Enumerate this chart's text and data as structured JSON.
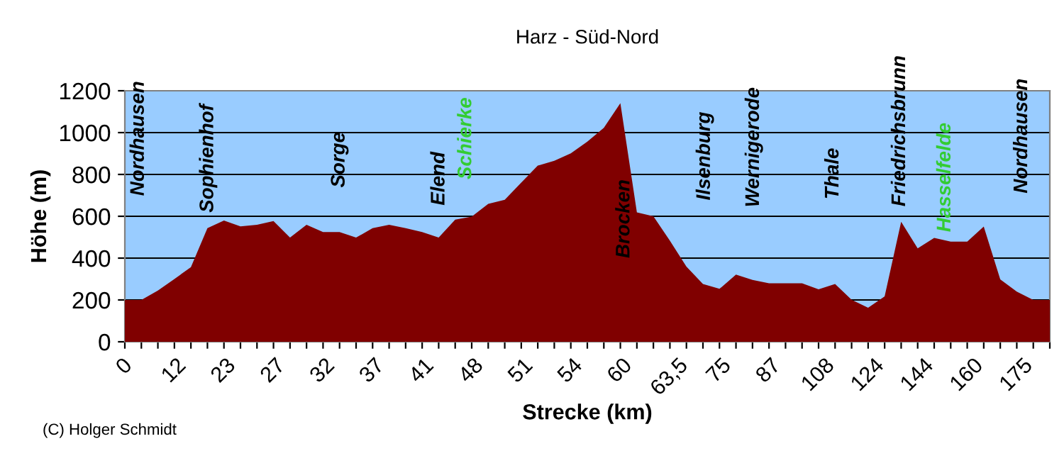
{
  "chart_data": {
    "type": "area",
    "title": "Harz - Süd-Nord",
    "xlabel": "Strecke (km)",
    "ylabel": "Höhe (m)",
    "categories": [
      "0",
      null,
      null,
      "12",
      null,
      null,
      "23",
      null,
      null,
      "27",
      null,
      null,
      "32",
      null,
      null,
      "37",
      null,
      null,
      "41",
      null,
      null,
      "48",
      null,
      null,
      "51",
      null,
      null,
      "54",
      null,
      null,
      "60",
      null,
      null,
      "63,5",
      null,
      null,
      "75",
      null,
      null,
      "87",
      null,
      null,
      "108",
      null,
      null,
      "124",
      null,
      null,
      "144",
      null,
      null,
      "160",
      null,
      null,
      "175",
      null,
      null
    ],
    "series": [
      {
        "color": "#800000",
        "values": [
          200,
          200,
          245,
          300,
          357,
          543,
          580,
          552,
          559,
          577,
          498,
          559,
          525,
          525,
          498,
          543,
          559,
          543,
          525,
          498,
          584,
          598,
          659,
          679,
          761,
          842,
          865,
          901,
          957,
          1023,
          1141,
          619,
          600,
          483,
          359,
          276,
          253,
          321,
          296,
          280,
          280,
          280,
          251,
          276,
          201,
          163,
          217,
          574,
          447,
          497,
          479,
          479,
          551,
          298,
          240,
          200,
          200
        ]
      }
    ],
    "ylim": [
      0,
      1200
    ],
    "yticks": [
      0,
      200,
      400,
      600,
      800,
      1000,
      1200
    ],
    "grid": "y",
    "legend": false,
    "annotations": [
      "Nordhausen",
      "Sophienhof",
      "Sorge",
      "Elend",
      "Schierke",
      "Brocken",
      "Ilsenburg",
      "Wernigerode",
      "Thale",
      "Friedrichsbrunn",
      "Hasselfelde",
      "Nordhausen",
      "(C) Holger Schmidt"
    ]
  }
}
